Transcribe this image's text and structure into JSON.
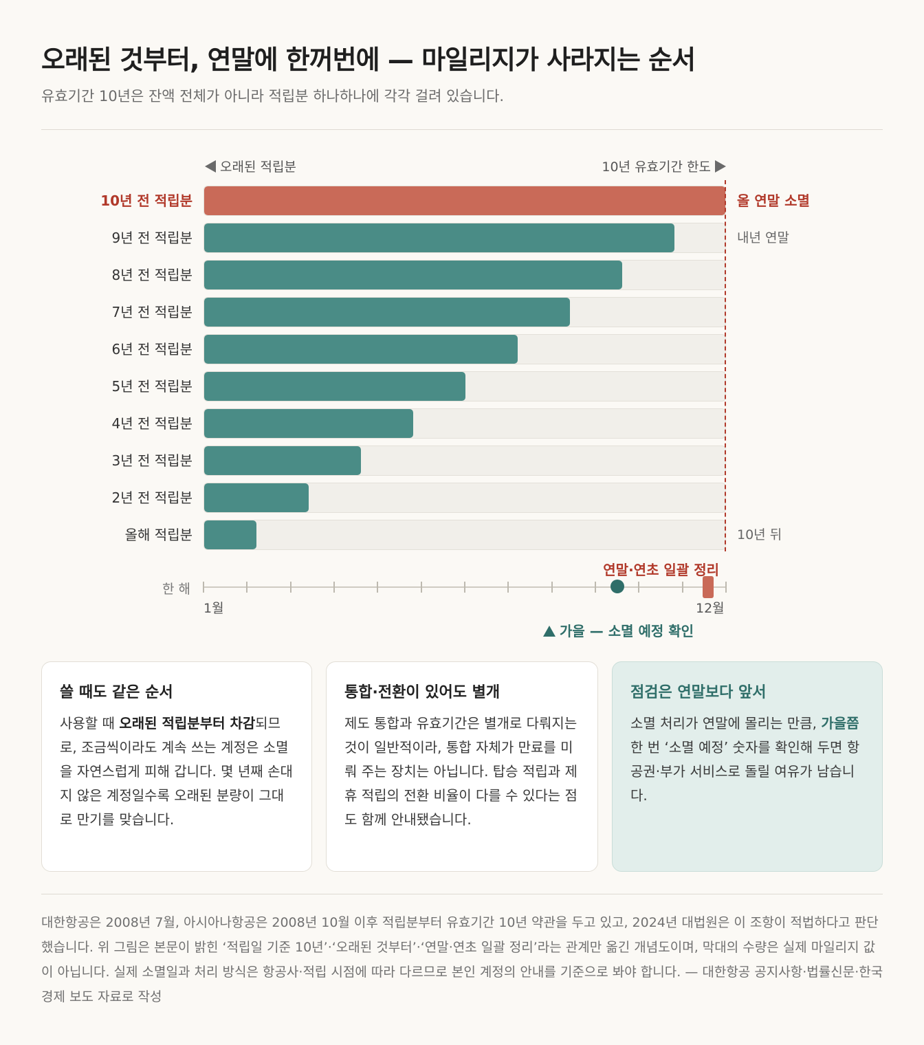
{
  "title": "오래된 것부터, 연말에 한꺼번에 — 마일리지가 사라지는 순서",
  "subtitle": "유효기간 10년은 잔액 전체가 아니라 적립분 하나하나에 각각 걸려 있습니다.",
  "colors": {
    "teal": "#4a8c86",
    "red": "#c96a58",
    "accent_red": "#b1392a",
    "dark_teal": "#2f6e69"
  },
  "chart_data": {
    "type": "bar",
    "orientation": "horizontal",
    "axis_hint_left": "오래된 적립분",
    "axis_hint_right": "10년 유효기간 한도",
    "categories": [
      "10년 전 적립분",
      "9년 전 적립분",
      "8년 전 적립분",
      "7년 전 적립분",
      "6년 전 적립분",
      "5년 전 적립분",
      "4년 전 적립분",
      "3년 전 적립분",
      "2년 전 적립분",
      "올해 적립분"
    ],
    "values": [
      10,
      9,
      8,
      7,
      6,
      5,
      4,
      3,
      2,
      1
    ],
    "xlim": [
      0,
      10
    ],
    "highlight_index": 0,
    "end_notes": [
      {
        "index": 0,
        "text": "올 연말 소멸"
      },
      {
        "index": 1,
        "text": "내년 연말"
      },
      {
        "index": 9,
        "text": "10년 뒤"
      }
    ],
    "timeline": {
      "label": "한 해",
      "start": "1월",
      "end": "12월",
      "ticks": 13,
      "check_month": 10.5,
      "check_label": "가을 — 소멸 예정 확인",
      "expire_month": 12.5,
      "expire_label": "연말·연초 일괄 정리"
    }
  },
  "cards": [
    {
      "title": "쓸 때도 같은 순서",
      "parts": [
        {
          "t": "사용할 때 "
        },
        {
          "t": "오래된 적립분부터 차감",
          "b": true
        },
        {
          "t": "되므로, 조금씩이라도 계속 쓰는 계정은 소멸을 자연스럽게 피해 갑니다. 몇 년째 손대지 않은 계정일수록 오래된 분량이 그대로 만기를 맞습니다."
        }
      ]
    },
    {
      "title": "통합·전환이 있어도 별개",
      "parts": [
        {
          "t": "제도 통합과 유효기간은 별개로 다뤄지는 것이 일반적이라, 통합 자체가 만료를 미뤄 주는 장치는 아닙니다. 탑승 적립과 제휴 적립의 전환 비율이 다를 수 있다는 점도 함께 안내됐습니다."
        }
      ]
    },
    {
      "title": "점검은 연말보다 앞서",
      "parts": [
        {
          "t": "소멸 처리가 연말에 몰리는 만큼, "
        },
        {
          "t": "가을쯤",
          "b": true
        },
        {
          "t": " 한 번 ‘소멸 예정’ 숫자를 확인해 두면 항공권·부가 서비스로 돌릴 여유가 남습니다."
        }
      ]
    }
  ],
  "footnote": "대한항공은 2008년 7월, 아시아나항공은 2008년 10월 이후 적립분부터 유효기간 10년 약관을 두고 있고, 2024년 대법원은 이 조항이 적법하다고 판단했습니다. 위 그림은 본문이 밝힌 ‘적립일 기준 10년’·‘오래된 것부터’·‘연말·연초 일괄 정리’라는 관계만 옮긴 개념도이며, 막대의 수량은 실제 마일리지 값이 아닙니다. 실제 소멸일과 처리 방식은 항공사·적립 시점에 따라 다르므로 본인 계정의 안내를 기준으로 봐야 합니다. — 대한항공 공지사항·법률신문·한국경제 보도 자료로 작성"
}
